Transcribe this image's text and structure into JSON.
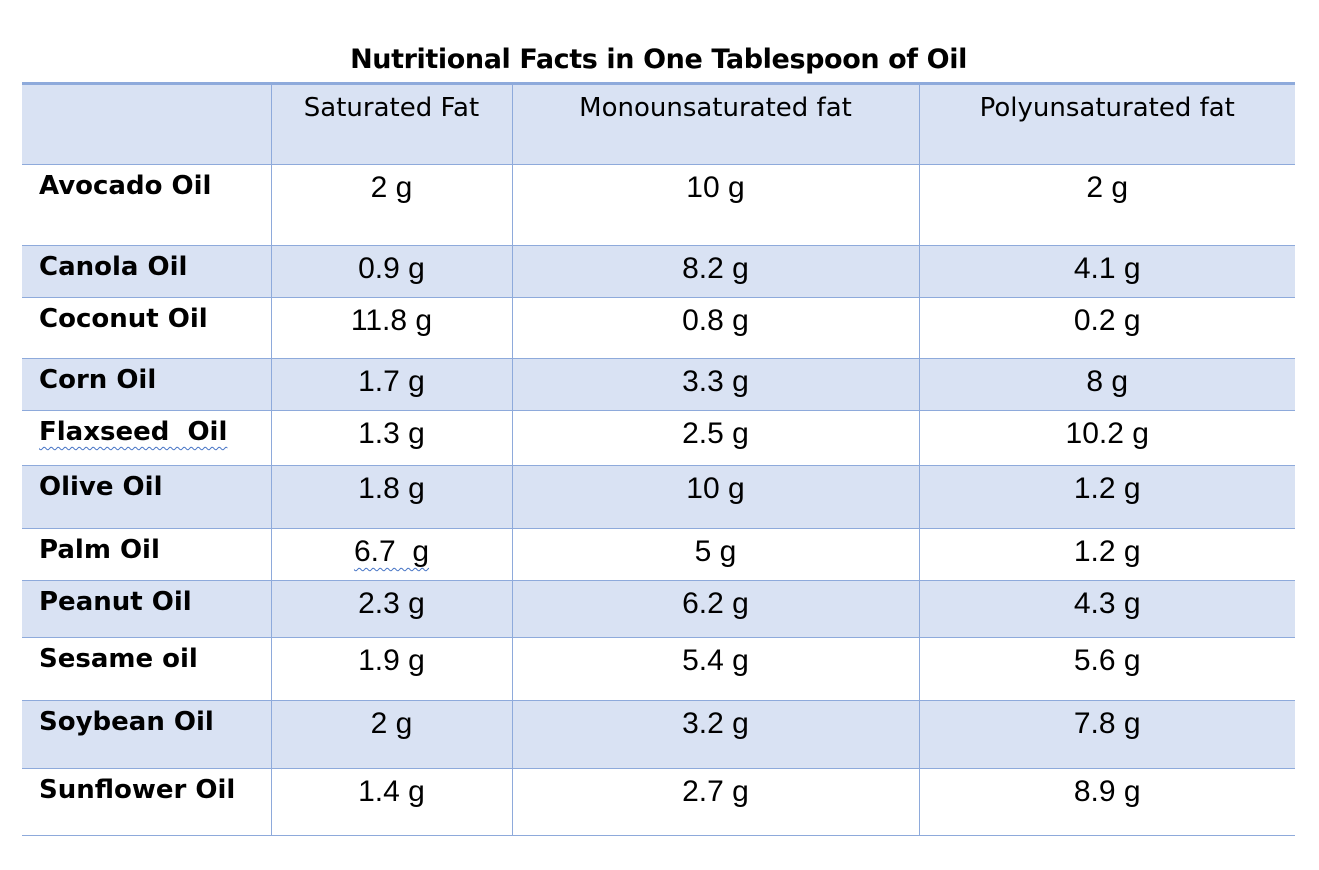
{
  "title": "Nutritional Facts in One Tablespoon of Oil",
  "columns": [
    "",
    "Saturated Fat",
    "Monounsaturated fat",
    "Polyunsaturated fat"
  ],
  "rows": [
    {
      "name": "Avocado Oil",
      "saturated": "2 g",
      "monounsaturated": "10 g",
      "polyunsaturated": "2 g"
    },
    {
      "name": "Canola Oil",
      "saturated": "0.9 g",
      "monounsaturated": "8.2 g",
      "polyunsaturated": "4.1 g"
    },
    {
      "name": "Coconut Oil",
      "saturated": "11.8 g",
      "monounsaturated": "0.8 g",
      "polyunsaturated": "0.2 g"
    },
    {
      "name": "Corn Oil",
      "saturated": "1.7 g",
      "monounsaturated": "3.3 g",
      "polyunsaturated": "8 g"
    },
    {
      "name": "Flaxseed  Oil",
      "saturated": "1.3 g",
      "monounsaturated": "2.5 g",
      "polyunsaturated": "10.2 g"
    },
    {
      "name": "Olive Oil",
      "saturated": "1.8 g",
      "monounsaturated": "10 g",
      "polyunsaturated": "1.2 g"
    },
    {
      "name": "Palm Oil",
      "saturated": "6.7  g",
      "monounsaturated": "5 g",
      "polyunsaturated": "1.2 g"
    },
    {
      "name": "Peanut Oil",
      "saturated": "2.3 g",
      "monounsaturated": "6.2 g",
      "polyunsaturated": "4.3 g"
    },
    {
      "name": "Sesame oil",
      "saturated": "1.9 g",
      "monounsaturated": "5.4 g",
      "polyunsaturated": "5.6 g"
    },
    {
      "name": "Soybean Oil",
      "saturated": "2 g",
      "monounsaturated": "3.2 g",
      "polyunsaturated": "7.8 g"
    },
    {
      "name": "Sunflower Oil",
      "saturated": "1.4 g",
      "monounsaturated": "2.7 g",
      "polyunsaturated": "8.9 g"
    }
  ],
  "colors": {
    "header_fill": "#d9e2f3",
    "band_fill": "#d9e2f3",
    "grid_line": "#8eaadb",
    "spellcheck_underline": "#4472c4"
  }
}
